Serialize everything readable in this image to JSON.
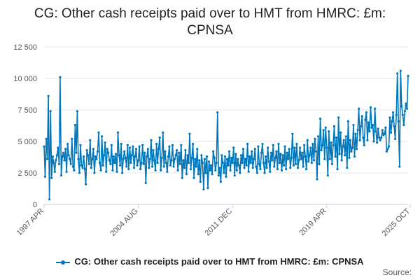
{
  "title_line1": "CG: Other cash receipts paid over to HMT from HMRC: £m:",
  "title_line2": "CPNSA",
  "source_text": "Source:",
  "colors": {
    "series": "#0077bb",
    "grid": "#e6e6e6",
    "axis": "#c0d0e0",
    "text": "#555555"
  },
  "chart_data": {
    "type": "line",
    "title": "CG: Other cash receipts paid over to HMT from HMRC: £m: CPNSA",
    "xlabel": "",
    "ylabel": "",
    "ylim": [
      0,
      12500
    ],
    "yticks": [
      0,
      2500,
      5000,
      7500,
      10000,
      12500
    ],
    "ytick_labels": [
      "0",
      "2 500",
      "5 000",
      "7 500",
      "10 000",
      "12 500"
    ],
    "x_start": "1997 APR",
    "x_end": "2025 OCT",
    "xticks": [
      {
        "label": "1997 APR",
        "index": 0
      },
      {
        "label": "2004 AUG",
        "index": 88
      },
      {
        "label": "2011 DEC",
        "index": 176
      },
      {
        "label": "2019 APR",
        "index": 264
      },
      {
        "label": "2025 OCT",
        "index": 342
      }
    ],
    "legend": "bottom",
    "grid": "horizontal",
    "series": [
      {
        "name": "CG: Other cash receipts paid over to HMT from HMRC: £m: CPNSA",
        "frequency": "monthly",
        "values": [
          4600,
          2200,
          5200,
          3600,
          8600,
          400,
          7400,
          2100,
          3800,
          3300,
          2600,
          3500,
          3900,
          4500,
          3200,
          10100,
          2300,
          3800,
          4100,
          3500,
          4400,
          2600,
          4800,
          3900,
          3600,
          3200,
          5200,
          3000,
          2700,
          6300,
          4100,
          7400,
          3600,
          2500,
          4700,
          3100,
          2900,
          3800,
          2800,
          1600,
          4300,
          3900,
          3200,
          5100,
          2900,
          3600,
          4400,
          2500,
          3800,
          3600,
          4200,
          5700,
          3300,
          2700,
          5400,
          3100,
          3900,
          4900,
          2600,
          4400,
          4100,
          3500,
          3200,
          4700,
          2700,
          3800,
          3300,
          4000,
          2600,
          5700,
          3900,
          3100,
          4800,
          2500,
          3600,
          4200,
          3700,
          3000,
          4700,
          2800,
          4500,
          3300,
          3900,
          4600,
          2900,
          3800,
          4400,
          3100,
          3500,
          4600,
          2800,
          3300,
          4700,
          3200,
          4100,
          1700,
          3800,
          4400,
          2900,
          3600,
          5100,
          3000,
          4300,
          3500,
          2700,
          4800,
          3300,
          4400,
          5300,
          2700,
          3700,
          5700,
          3000,
          4200,
          3300,
          2600,
          3800,
          4600,
          3100,
          3500,
          4700,
          3000,
          3600,
          3900,
          4300,
          2700,
          4100,
          3200,
          4700,
          2100,
          3500,
          2900,
          4300,
          2400,
          3900,
          3300,
          5600,
          2800,
          3700,
          4800,
          2100,
          3600,
          3000,
          4400,
          2400,
          3500,
          1800,
          3900,
          3300,
          1200,
          3600,
          2500,
          3800,
          1300,
          3400,
          2700,
          3100,
          2400,
          4200,
          3700,
          2700,
          3300,
          7300,
          2300,
          2900,
          1800,
          3900,
          3300,
          2500,
          3800,
          2200,
          3600,
          3100,
          4200,
          2700,
          3700,
          3300,
          4500,
          2300,
          4000,
          2700,
          3600,
          3100,
          2500,
          3900,
          3300,
          4400,
          2900,
          3600,
          3100,
          4800,
          2600,
          3800,
          3300,
          4200,
          2900,
          3600,
          4400,
          3000,
          2500,
          4600,
          3200,
          2800,
          4100,
          4800,
          3300,
          2500,
          3800,
          2900,
          4500,
          3400,
          2600,
          4100,
          3500,
          4700,
          3000,
          3700,
          4200,
          2800,
          4800,
          3300,
          4000,
          2700,
          3900,
          3100,
          4600,
          2800,
          4100,
          3600,
          4400,
          2900,
          3700,
          5600,
          3100,
          4500,
          3200,
          4800,
          2900,
          3500,
          4500,
          3600,
          4100,
          3000,
          4700,
          3800,
          2800,
          5100,
          3400,
          3900,
          4500,
          3300,
          4800,
          3500,
          5200,
          4200,
          2000,
          5400,
          3200,
          6800,
          4300,
          4700,
          5900,
          3600,
          6100,
          4500,
          2300,
          5800,
          3600,
          4900,
          3200,
          4700,
          6200,
          3800,
          5300,
          2800,
          6900,
          4000,
          5700,
          3500,
          4600,
          5100,
          3900,
          5400,
          2900,
          6600,
          3700,
          5100,
          4200,
          4500,
          6300,
          3800,
          5600,
          4400,
          5900,
          7600,
          5100,
          6200,
          7000,
          5300,
          4700,
          6700,
          7300,
          5100,
          6500,
          5800,
          7700,
          6100,
          6300,
          5000,
          7600,
          5800,
          4900,
          6000,
          5300,
          5100,
          5300,
          5900,
          5500,
          5600,
          6100,
          4200,
          4400,
          4600,
          6900,
          5700,
          6600,
          7300,
          6200,
          5200,
          7100,
          10400,
          6600,
          3000,
          10600,
          7800,
          7100,
          6300,
          7400,
          8000,
          7600,
          10200
        ]
      }
    ]
  },
  "legend_label": "CG: Other cash receipts paid over to HMT from HMRC: £m: CPNSA"
}
